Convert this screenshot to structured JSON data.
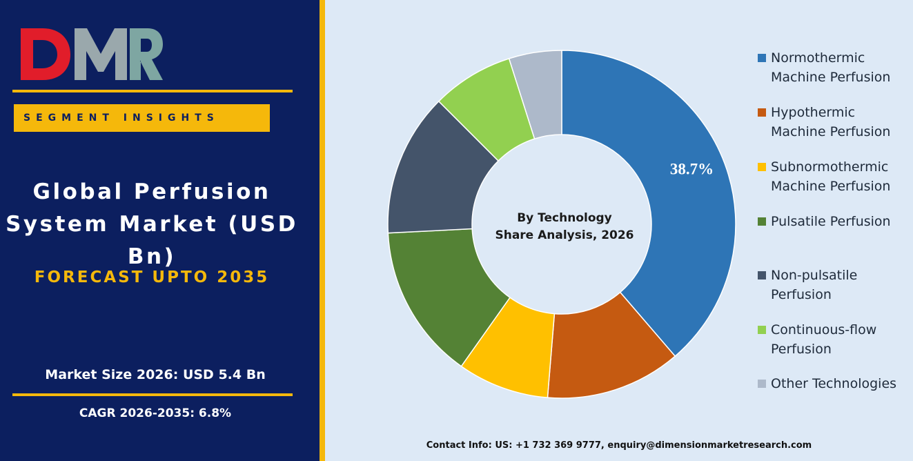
{
  "brand": {
    "logo_text": "DMR",
    "accent": "#f5b80b",
    "navy": "#0c1f5f"
  },
  "left": {
    "segment_label": "SEGMENT INSIGHTS",
    "title_line1": "Global Perfusion",
    "title_line2": "System Market (USD",
    "title_line3": "Bn)",
    "forecast": "FORECAST UPTO 2035",
    "market_size": "Market Size 2026: USD 5.4 Bn",
    "cagr": "CAGR 2026-2035: 6.8%"
  },
  "chart_data": {
    "type": "pie",
    "donut": true,
    "center_line1": "By Technology",
    "center_line2": "Share Analysis, 2026",
    "legend_position": "right",
    "series": [
      {
        "name": "Normothermic Machine Perfusion",
        "value": 38.7,
        "color": "#2e75b6",
        "label": "38.7%"
      },
      {
        "name": "Hypothermic Machine Perfusion",
        "value": 12.6,
        "color": "#c55a11",
        "label": ""
      },
      {
        "name": "Subnormothermic Machine Perfusion",
        "value": 8.5,
        "color": "#ffc000",
        "label": ""
      },
      {
        "name": "Pulsatile Perfusion",
        "value": 14.4,
        "color": "#548235",
        "label": ""
      },
      {
        "name": "Non-pulsatile Perfusion",
        "value": 13.3,
        "color": "#44546a",
        "label": ""
      },
      {
        "name": "Continuous-flow Perfusion",
        "value": 7.6,
        "color": "#92d050",
        "label": ""
      },
      {
        "name": "Other Technologies",
        "value": 4.9,
        "color": "#adb9ca",
        "label": ""
      }
    ]
  },
  "legend": {
    "items": [
      {
        "line1": "Normothermic",
        "line2": "Machine Perfusion"
      },
      {
        "line1": "Hypothermic",
        "line2": "Machine Perfusion"
      },
      {
        "line1": "Subnormothermic",
        "line2": "Machine Perfusion"
      },
      {
        "line1": "Pulsatile Perfusion",
        "line2": ""
      },
      {
        "line1": "Non-pulsatile",
        "line2": "Perfusion"
      },
      {
        "line1": "Continuous-flow",
        "line2": "Perfusion"
      },
      {
        "line1": "Other Technologies",
        "line2": ""
      }
    ]
  },
  "footer": {
    "contact": "Contact Info: US: +1 732 369 9777, enquiry@dimensionmarketresearch.com"
  }
}
